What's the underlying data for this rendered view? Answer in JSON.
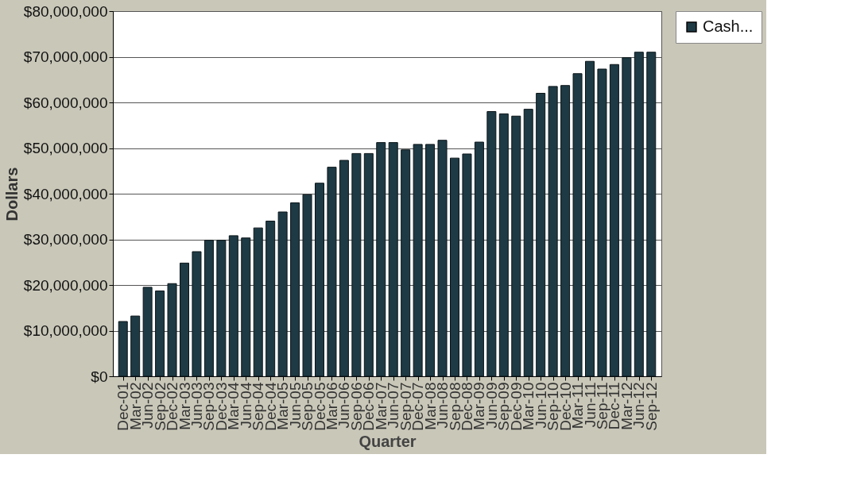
{
  "chart_data": {
    "type": "bar",
    "xlabel": "Quarter",
    "ylabel": "Dollars",
    "categories": [
      "Dec-01",
      "Mar-02",
      "Jun-02",
      "Sep-02",
      "Dec-02",
      "Mar-03",
      "Jun-03",
      "Sep-03",
      "Dec-03",
      "Mar-04",
      "Jun-04",
      "Sep-04",
      "Dec-04",
      "Mar-05",
      "Jun-05",
      "Sep-05",
      "Dec-05",
      "Mar-06",
      "Jun-06",
      "Sep-06",
      "Dec-06",
      "Mar-07",
      "Jun-07",
      "Sep-07",
      "Dec-07",
      "Mar-08",
      "Jun-08",
      "Sep-08",
      "Dec-08",
      "Mar-09",
      "Jun-09",
      "Sep-09",
      "Dec-09",
      "Mar-10",
      "Jun-10",
      "Sep-10",
      "Dec-10",
      "Mar-11",
      "Jun-11",
      "Sep-11",
      "Dec-11",
      "Mar-12",
      "Jun-12",
      "Sep-12"
    ],
    "series": [
      {
        "name": "Cash...",
        "color": "#1e3a44",
        "values": [
          12000000,
          13200000,
          19500000,
          18700000,
          20300000,
          24800000,
          27300000,
          29800000,
          29800000,
          30800000,
          30300000,
          32500000,
          34000000,
          36000000,
          38000000,
          39800000,
          42300000,
          45800000,
          47300000,
          48800000,
          48800000,
          51200000,
          51200000,
          49600000,
          50800000,
          50800000,
          51700000,
          47800000,
          48700000,
          51300000,
          58000000,
          57500000,
          57000000,
          58500000,
          62000000,
          63500000,
          63700000,
          66300000,
          69000000,
          67300000,
          68300000,
          69800000,
          71000000,
          71000000
        ]
      }
    ],
    "ylim": [
      0,
      80000000
    ],
    "yticks": [
      {
        "value": 0,
        "label": "$0"
      },
      {
        "value": 10000000,
        "label": "$10,000,000"
      },
      {
        "value": 20000000,
        "label": "$20,000,000"
      },
      {
        "value": 30000000,
        "label": "$30,000,000"
      },
      {
        "value": 40000000,
        "label": "$40,000,000"
      },
      {
        "value": 50000000,
        "label": "$50,000,000"
      },
      {
        "value": 60000000,
        "label": "$60,000,000"
      },
      {
        "value": 70000000,
        "label": "$70,000,000"
      },
      {
        "value": 80000000,
        "label": "$80,000,000"
      }
    ],
    "grid": "y",
    "legend": "right"
  }
}
